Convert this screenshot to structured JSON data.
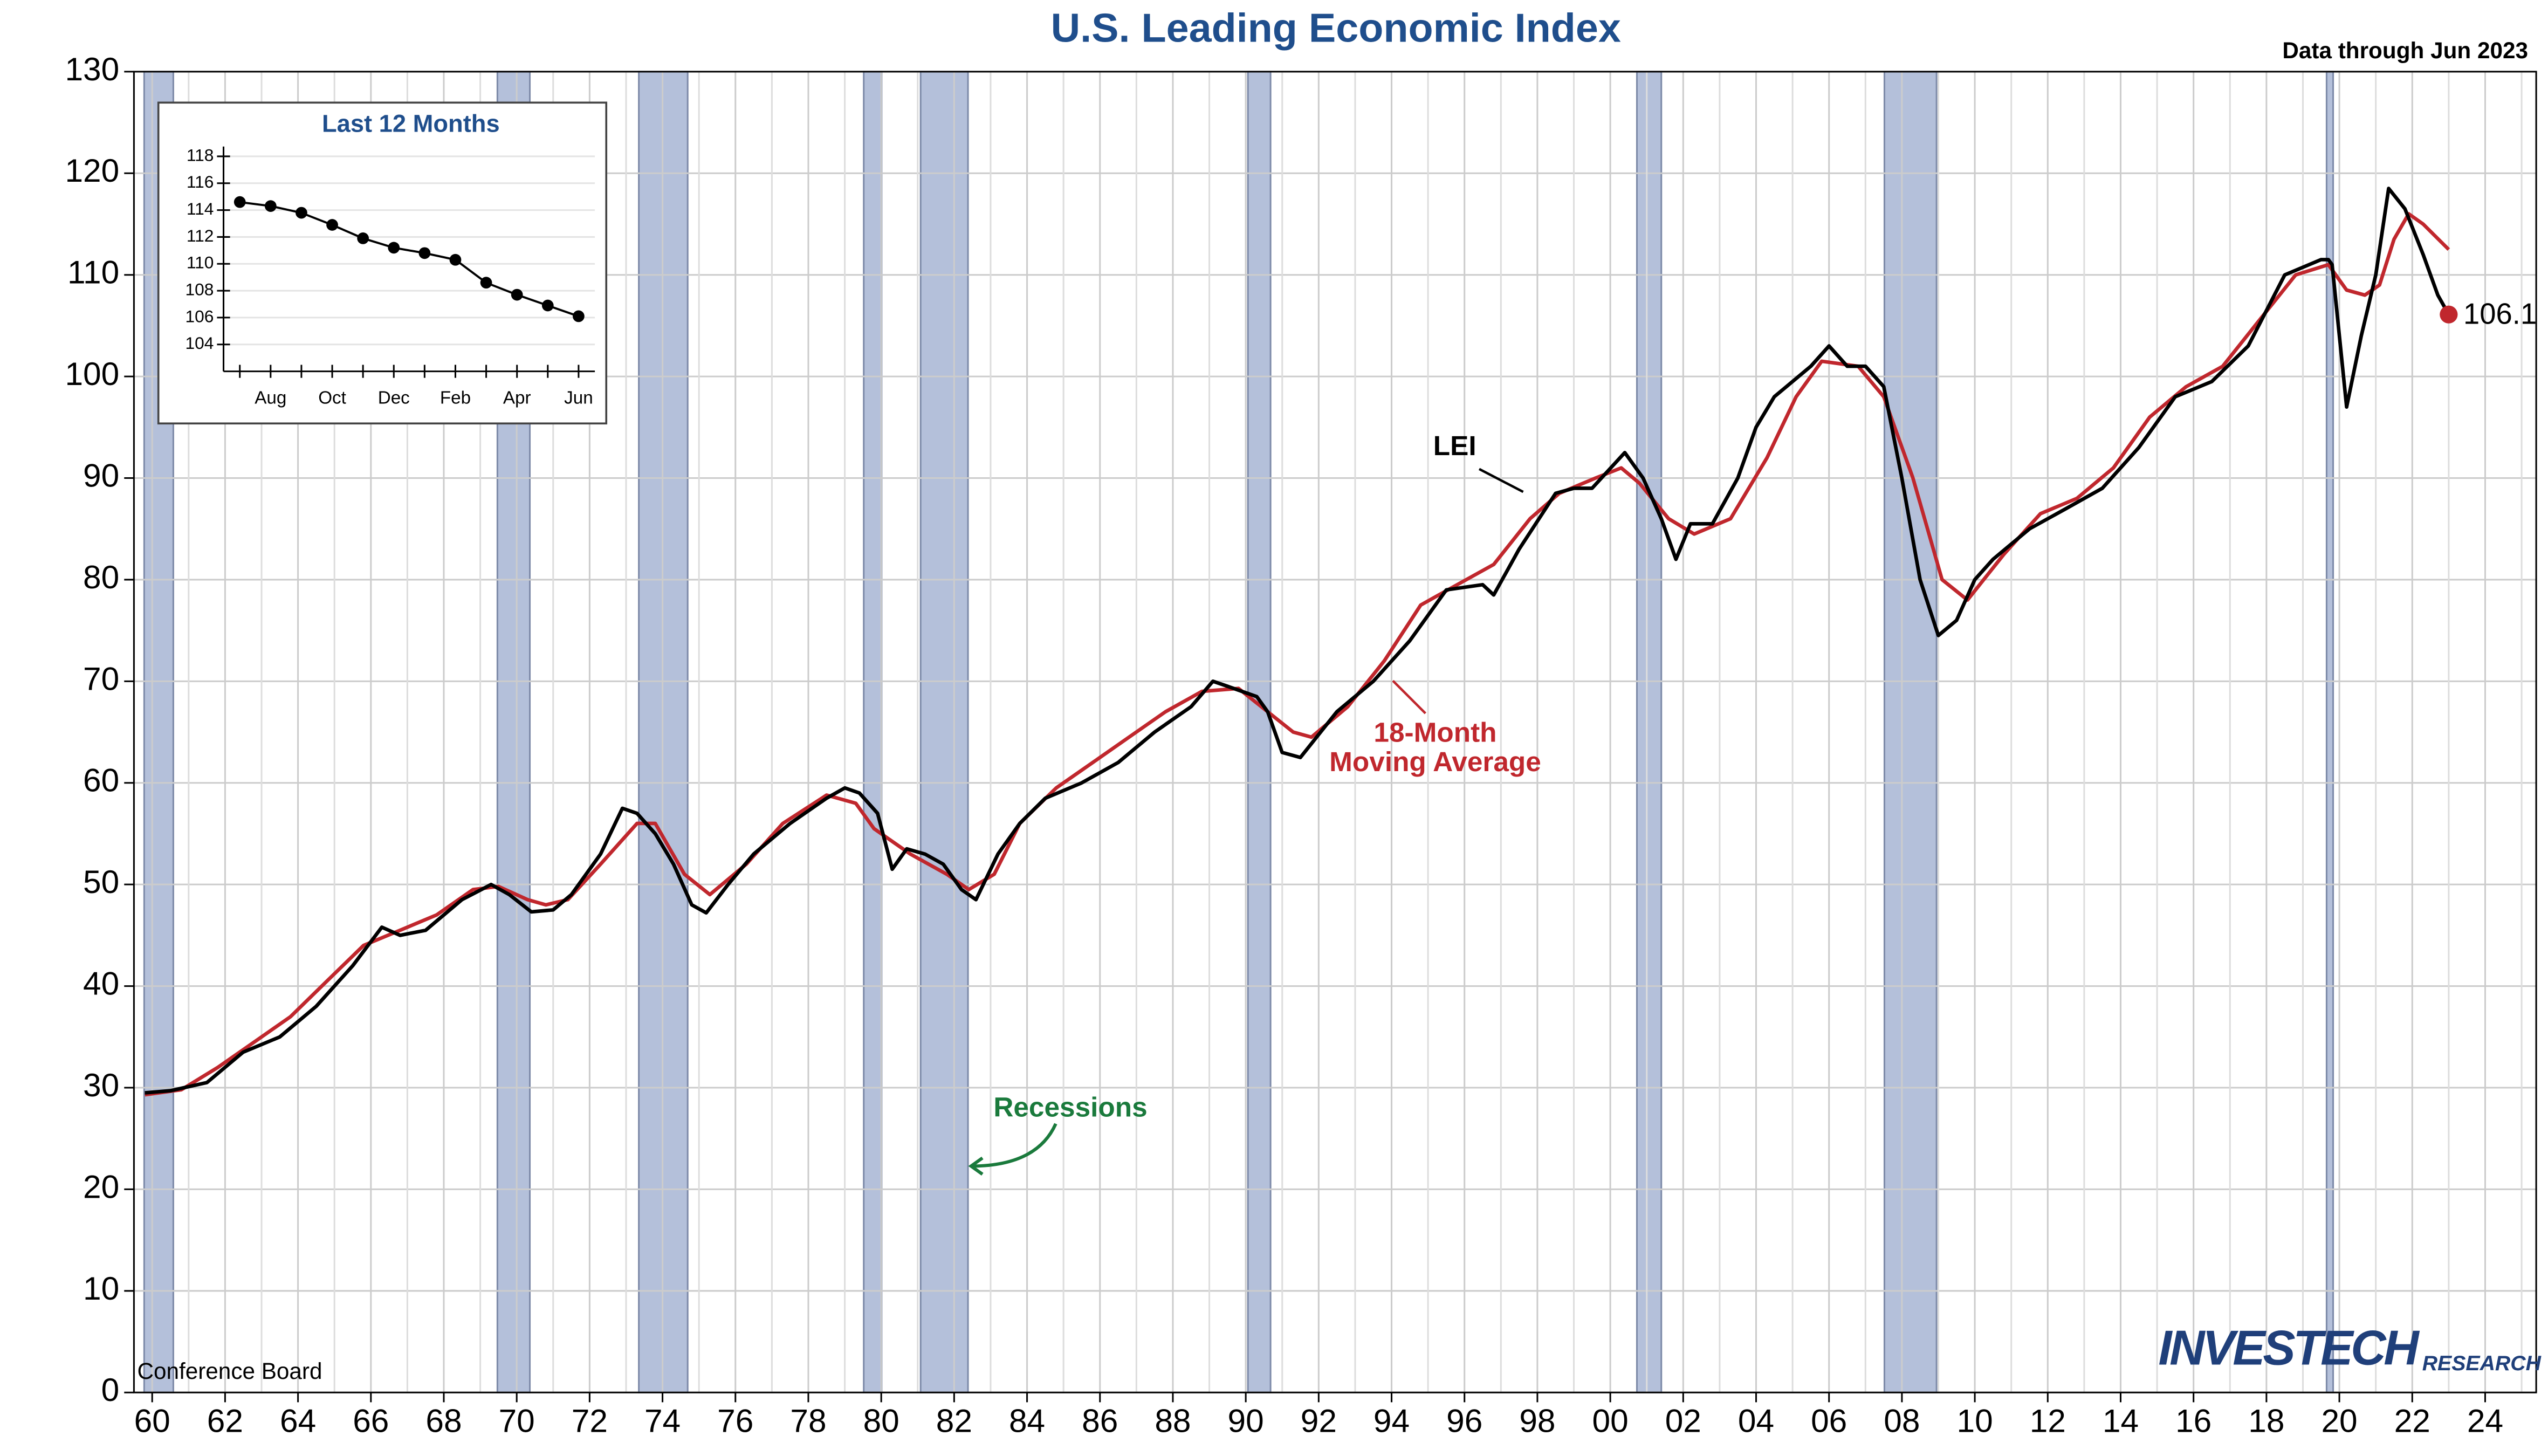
{
  "chart_data": [
    {
      "type": "line",
      "title": "U.S. Leading Economic Index",
      "subtitle": "Data through Jun 2023",
      "source": "Conference Board",
      "logo": [
        "INVESTECH",
        "RESEARCH"
      ],
      "annotations": {
        "lei": "LEI",
        "ma": [
          "18-Month",
          "Moving Average"
        ],
        "recessions": "Recessions"
      },
      "xlim": [
        1959.5,
        2025.4
      ],
      "ylim": [
        0,
        130
      ],
      "yticks": [
        0,
        10,
        20,
        30,
        40,
        50,
        60,
        70,
        80,
        90,
        100,
        110,
        120,
        130
      ],
      "xticks": [
        {
          "value": 1960,
          "label": "60"
        },
        {
          "value": 1962,
          "label": "62"
        },
        {
          "value": 1964,
          "label": "64"
        },
        {
          "value": 1966,
          "label": "66"
        },
        {
          "value": 1968,
          "label": "68"
        },
        {
          "value": 1970,
          "label": "70"
        },
        {
          "value": 1972,
          "label": "72"
        },
        {
          "value": 1974,
          "label": "74"
        },
        {
          "value": 1976,
          "label": "76"
        },
        {
          "value": 1978,
          "label": "78"
        },
        {
          "value": 1980,
          "label": "80"
        },
        {
          "value": 1982,
          "label": "82"
        },
        {
          "value": 1984,
          "label": "84"
        },
        {
          "value": 1986,
          "label": "86"
        },
        {
          "value": 1988,
          "label": "88"
        },
        {
          "value": 1990,
          "label": "90"
        },
        {
          "value": 1992,
          "label": "92"
        },
        {
          "value": 1994,
          "label": "94"
        },
        {
          "value": 1996,
          "label": "96"
        },
        {
          "value": 1998,
          "label": "98"
        },
        {
          "value": 2000,
          "label": "00"
        },
        {
          "value": 2002,
          "label": "02"
        },
        {
          "value": 2004,
          "label": "04"
        },
        {
          "value": 2006,
          "label": "06"
        },
        {
          "value": 2008,
          "label": "08"
        },
        {
          "value": 2010,
          "label": "10"
        },
        {
          "value": 2012,
          "label": "12"
        },
        {
          "value": 2014,
          "label": "14"
        },
        {
          "value": 2016,
          "label": "16"
        },
        {
          "value": 2018,
          "label": "18"
        },
        {
          "value": 2020,
          "label": "20"
        },
        {
          "value": 2022,
          "label": "22"
        },
        {
          "value": 2024,
          "label": "24"
        }
      ],
      "grid": true,
      "recession_color": "#b4c0da",
      "recessions": [
        [
          1959.78,
          1960.58
        ],
        [
          1969.47,
          1970.36
        ],
        [
          1973.35,
          1974.69
        ],
        [
          1979.52,
          1980.01
        ],
        [
          1981.08,
          1982.38
        ],
        [
          1990.06,
          1990.68
        ],
        [
          2000.73,
          2001.4
        ],
        [
          2007.52,
          2008.95
        ],
        [
          2019.65,
          2019.83
        ]
      ],
      "series": [
        {
          "name": "LEI",
          "color": "#000000",
          "x": [
            1959.8,
            1960.5,
            1961.5,
            1962.5,
            1963.5,
            1964.5,
            1965.5,
            1966.3,
            1966.8,
            1967.5,
            1968.5,
            1969.3,
            1969.8,
            1970.4,
            1971,
            1971.5,
            1972.3,
            1972.9,
            1973.3,
            1973.8,
            1974.3,
            1974.8,
            1975.2,
            1975.8,
            1976.5,
            1977.5,
            1978.5,
            1979,
            1979.4,
            1979.9,
            1980.3,
            1980.7,
            1981.2,
            1981.7,
            1982.2,
            1982.6,
            1983.2,
            1983.8,
            1984.5,
            1985.5,
            1986.5,
            1987.5,
            1988.5,
            1989.1,
            1989.5,
            1990.3,
            1990.6,
            1991,
            1991.5,
            1992.5,
            1993.5,
            1994.5,
            1995.5,
            1996.5,
            1996.8,
            1997.5,
            1998.5,
            1999,
            1999.5,
            2000.4,
            2000.9,
            2001.4,
            2001.8,
            2002.2,
            2002.8,
            2003.5,
            2004,
            2004.5,
            2005.5,
            2006,
            2006.5,
            2007,
            2007.5,
            2008,
            2008.5,
            2009,
            2009.5,
            2010,
            2010.5,
            2011.5,
            2012.5,
            2013.5,
            2014.5,
            2015.5,
            2016.5,
            2017.5,
            2018.5,
            2019.5,
            2019.7,
            2019.8,
            2020.2,
            2020.6,
            2021,
            2021.35,
            2021.8,
            2022.3,
            2022.7,
            2023.0
          ],
          "values": [
            29.5,
            29.7,
            30.5,
            33.5,
            35,
            38,
            42,
            45.8,
            45,
            45.5,
            48.5,
            50,
            49,
            47.3,
            47.5,
            49,
            53,
            57.5,
            57,
            55,
            52,
            48,
            47.2,
            50,
            53,
            56,
            58.5,
            59.5,
            59,
            57,
            51.5,
            53.5,
            53,
            52,
            49.5,
            48.5,
            53,
            56,
            58.5,
            60,
            62,
            65,
            67.5,
            70,
            69.5,
            68.5,
            67,
            63,
            62.5,
            67,
            70,
            74,
            79,
            79.5,
            78.5,
            83,
            88.5,
            89,
            89,
            92.5,
            90,
            86,
            82,
            85.5,
            85.5,
            90,
            95,
            98,
            101,
            103,
            101,
            101,
            99,
            90,
            80,
            74.5,
            76,
            80,
            82,
            85,
            87,
            89,
            93,
            98,
            99.5,
            103,
            110,
            111.5,
            111.5,
            111,
            97,
            104,
            110,
            118.5,
            116.5,
            112,
            108,
            106.1
          ]
        },
        {
          "name": "18-Month Moving Average",
          "color": "#c0272d",
          "x": [
            1959.8,
            1960.8,
            1961.8,
            1962.8,
            1963.8,
            1964.8,
            1965.8,
            1966.8,
            1967.8,
            1968.8,
            1969.5,
            1970.3,
            1970.8,
            1971.4,
            1972.3,
            1973.3,
            1973.8,
            1974.6,
            1975.3,
            1976.3,
            1977.3,
            1978.5,
            1979.3,
            1979.8,
            1980.8,
            1981.8,
            1982.4,
            1983.1,
            1983.8,
            1984.8,
            1985.8,
            1986.8,
            1987.8,
            1988.8,
            1989.8,
            1990.6,
            1991.3,
            1991.8,
            1992.8,
            1993.8,
            1994.8,
            1995.8,
            1996.8,
            1997.8,
            1998.6,
            1999.6,
            2000.3,
            2000.8,
            2001.6,
            2002.3,
            2003.3,
            2004.3,
            2005.1,
            2005.8,
            2006.8,
            2007.5,
            2008.3,
            2009.1,
            2009.8,
            2010.8,
            2011.8,
            2012.8,
            2013.8,
            2014.8,
            2015.8,
            2016.8,
            2017.8,
            2018.8,
            2019.7,
            2020.2,
            2020.7,
            2021.1,
            2021.5,
            2021.9,
            2022.3,
            2023.0
          ],
          "values": [
            29.3,
            29.8,
            32,
            34.5,
            37,
            40.5,
            44,
            45.5,
            47,
            49.5,
            49.8,
            48.5,
            48,
            48.5,
            52,
            56,
            56,
            51,
            49,
            52,
            56,
            58.8,
            58,
            55.5,
            53,
            51,
            49.5,
            51,
            56,
            59.5,
            62,
            64.5,
            67,
            69,
            69.3,
            67,
            65,
            64.5,
            67.5,
            72,
            77.5,
            79.5,
            81.5,
            86,
            88.5,
            90,
            91,
            89.5,
            86,
            84.5,
            86,
            92,
            98,
            101.5,
            101,
            98,
            90,
            80,
            78,
            82.5,
            86.5,
            88,
            91,
            96,
            99,
            101,
            105.5,
            110,
            111,
            108.5,
            108,
            109,
            113.5,
            116,
            115,
            112.5
          ]
        }
      ]
    },
    {
      "type": "line",
      "title": "Last 12 Months",
      "categories": [
        null,
        "Aug",
        null,
        "Oct",
        null,
        "Dec",
        null,
        "Feb",
        null,
        "Apr",
        null,
        "Jun"
      ],
      "values": [
        114.6,
        114.3,
        113.8,
        112.9,
        111.9,
        111.2,
        110.8,
        110.3,
        108.6,
        107.7,
        106.9,
        106.1
      ],
      "color": "#000000",
      "ylim": [
        102,
        118
      ],
      "yticks": [
        104,
        106,
        108,
        110,
        112,
        114,
        116,
        118
      ],
      "grid": true
    }
  ]
}
